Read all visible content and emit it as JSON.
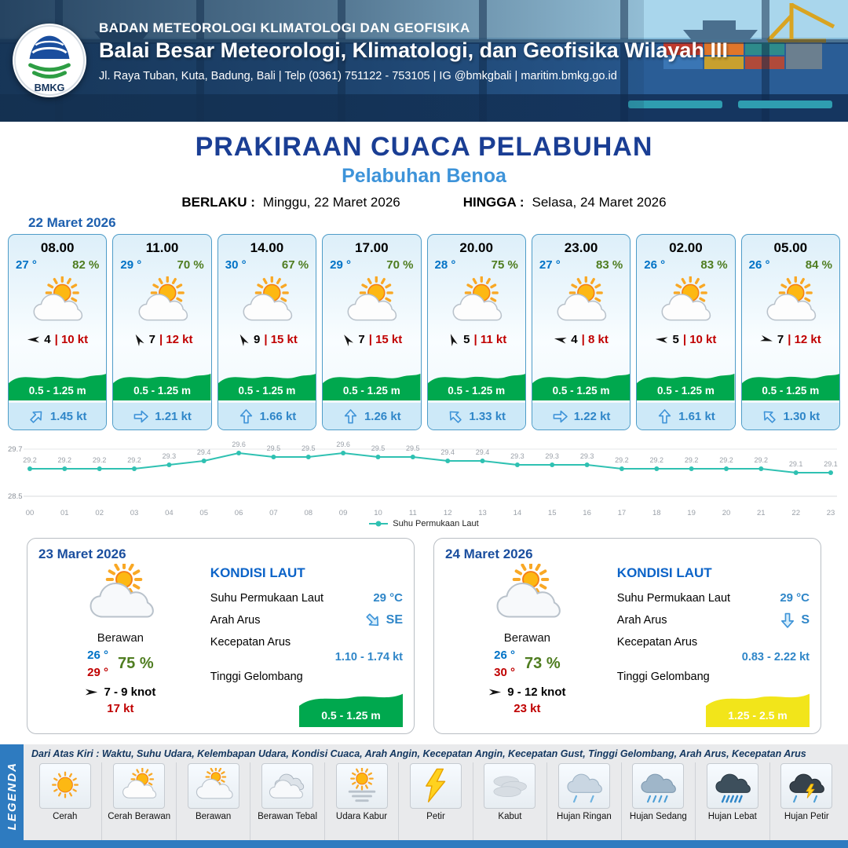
{
  "colors": {
    "header_navy": "#1C4070",
    "title_blue": "#1A3E94",
    "port_blue": "#3D93D9",
    "temp_blue": "#0072C6",
    "humidity_green": "#4F7D20",
    "gust_red": "#C00000",
    "wave_green": "#00A84E",
    "wave_yellow": "#F2E51A",
    "current_blue": "#2F86C8",
    "chart_teal": "#2FC1B2",
    "legend_blue": "#2E7BC0"
  },
  "header": {
    "logo_text": "BMKG",
    "line1": "BADAN METEOROLOGI KLIMATOLOGI DAN GEOFISIKA",
    "line2": "Balai Besar Meteorologi, Klimatologi, dan Geofisika Wilayah III",
    "line3": "Jl. Raya Tuban, Kuta, Badung, Bali | Telp (0361) 751122 - 753105 | IG @bmkgbali | maritim.bmkg.go.id"
  },
  "title": {
    "main": "PRAKIRAAN CUACA PELABUHAN",
    "sub": "Pelabuhan Benoa",
    "berlaku_label": "BERLAKU :",
    "berlaku_value": "Minggu, 22 Maret 2026",
    "hingga_label": "HINGGA :",
    "hingga_value": "Selasa, 24 Maret 2026"
  },
  "icons": {
    "wind": "wind-arrow",
    "current": "current-arrow"
  },
  "hourly": {
    "date": "22 Maret 2026",
    "cards": [
      {
        "time": "08.00",
        "temp": "27 °",
        "rh": "82 %",
        "icon": "cerah-berawan",
        "wind_dir_deg": 180,
        "wind_speed": "4",
        "gust": "| 10 kt",
        "wave": "0.5 - 1.25 m",
        "current_dir_deg": -45,
        "current_speed": "1.45 kt"
      },
      {
        "time": "11.00",
        "temp": "29 °",
        "rh": "70 %",
        "icon": "cerah-berawan",
        "wind_dir_deg": 240,
        "wind_speed": "7",
        "gust": "| 12 kt",
        "wave": "0.5 - 1.25 m",
        "current_dir_deg": 0,
        "current_speed": "1.21 kt"
      },
      {
        "time": "14.00",
        "temp": "30 °",
        "rh": "67 %",
        "icon": "cerah-berawan",
        "wind_dir_deg": 240,
        "wind_speed": "9",
        "gust": "| 15 kt",
        "wave": "0.5 - 1.25 m",
        "current_dir_deg": -90,
        "current_speed": "1.66 kt"
      },
      {
        "time": "17.00",
        "temp": "29 °",
        "rh": "70 %",
        "icon": "cerah-berawan",
        "wind_dir_deg": 235,
        "wind_speed": "7",
        "gust": "| 15 kt",
        "wave": "0.5 - 1.25 m",
        "current_dir_deg": -90,
        "current_speed": "1.26 kt"
      },
      {
        "time": "20.00",
        "temp": "28 °",
        "rh": "75 %",
        "icon": "cerah-berawan",
        "wind_dir_deg": 250,
        "wind_speed": "5",
        "gust": "| 11 kt",
        "wave": "0.5 - 1.25 m",
        "current_dir_deg": -135,
        "current_speed": "1.33 kt"
      },
      {
        "time": "23.00",
        "temp": "27 °",
        "rh": "83 %",
        "icon": "cerah-berawan",
        "wind_dir_deg": 190,
        "wind_speed": "4",
        "gust": "| 8 kt",
        "wave": "0.5 - 1.25 m",
        "current_dir_deg": 0,
        "current_speed": "1.22 kt"
      },
      {
        "time": "02.00",
        "temp": "26 °",
        "rh": "83 %",
        "icon": "cerah-berawan",
        "wind_dir_deg": 185,
        "wind_speed": "5",
        "gust": "| 10 kt",
        "wave": "0.5 - 1.25 m",
        "current_dir_deg": -90,
        "current_speed": "1.61 kt"
      },
      {
        "time": "05.00",
        "temp": "26 °",
        "rh": "84 %",
        "icon": "cerah-berawan",
        "wind_dir_deg": 15,
        "wind_speed": "7",
        "gust": "| 12 kt",
        "wave": "0.5 - 1.25 m",
        "current_dir_deg": -135,
        "current_speed": "1.30 kt"
      }
    ]
  },
  "chart_data": {
    "type": "line",
    "series_name": "Suhu Permukaan Laut",
    "x": [
      "00",
      "01",
      "02",
      "03",
      "04",
      "05",
      "06",
      "07",
      "08",
      "09",
      "10",
      "11",
      "12",
      "13",
      "14",
      "15",
      "16",
      "17",
      "18",
      "19",
      "20",
      "21",
      "22",
      "23"
    ],
    "values": [
      29.2,
      29.2,
      29.2,
      29.2,
      29.3,
      29.4,
      29.6,
      29.5,
      29.5,
      29.6,
      29.5,
      29.5,
      29.4,
      29.4,
      29.3,
      29.3,
      29.3,
      29.2,
      29.2,
      29.2,
      29.2,
      29.2,
      29.1,
      29.1
    ],
    "ylim": [
      28.5,
      29.7
    ],
    "line_color": "#2FC1B2",
    "grid": true,
    "legend_position": "bottom"
  },
  "daily": {
    "cards": [
      {
        "date": "23 Maret 2026",
        "icon": "berawan",
        "condition": "Berawan",
        "temp_min": "26 °",
        "temp_max": "29 °",
        "rh": "75 %",
        "wind_dir_deg": 0,
        "wind_range": "7 - 9 knot",
        "gust": "17 kt",
        "sea": {
          "title": "KONDISI LAUT",
          "sst_label": "Suhu Permukaan Laut",
          "sst": "29 °C",
          "dir_label": "Arah Arus",
          "dir": "SE",
          "dir_deg": 45,
          "speed_label": "Kecepatan Arus",
          "speed": "1.10 - 1.74 kt",
          "wave_label": "Tinggi Gelombang",
          "wave": "0.5 - 1.25 m",
          "wave_fill": "#00A84E"
        }
      },
      {
        "date": "24 Maret 2026",
        "icon": "berawan",
        "condition": "Berawan",
        "temp_min": "26 °",
        "temp_max": "30 °",
        "rh": "73 %",
        "wind_dir_deg": 0,
        "wind_range": "9 - 12 knot",
        "gust": "23 kt",
        "sea": {
          "title": "KONDISI LAUT",
          "sst_label": "Suhu Permukaan Laut",
          "sst": "29 °C",
          "dir_label": "Arah Arus",
          "dir": "S",
          "dir_deg": 90,
          "speed_label": "Kecepatan Arus",
          "speed": "0.83 - 2.22 kt",
          "wave_label": "Tinggi Gelombang",
          "wave": "1.25 - 2.5 m",
          "wave_fill": "#F2E51A"
        }
      }
    ]
  },
  "legend": {
    "label": "LEGENDA",
    "description": "Dari Atas Kiri : Waktu, Suhu Udara, Kelembapan Udara, Kondisi Cuaca, Arah Angin, Kecepatan Angin, Kecepatan Gust, Tinggi Gelombang, Arah Arus, Kecepatan Arus",
    "items": [
      {
        "icon": "cerah",
        "label": "Cerah"
      },
      {
        "icon": "cerah-berawan",
        "label": "Cerah Berawan"
      },
      {
        "icon": "berawan",
        "label": "Berawan"
      },
      {
        "icon": "berawan-tebal",
        "label": "Berawan Tebal"
      },
      {
        "icon": "udara-kabur",
        "label": "Udara Kabur"
      },
      {
        "icon": "petir",
        "label": "Petir"
      },
      {
        "icon": "kabut",
        "label": "Kabut"
      },
      {
        "icon": "hujan-ringan",
        "label": "Hujan Ringan"
      },
      {
        "icon": "hujan-sedang",
        "label": "Hujan Sedang"
      },
      {
        "icon": "hujan-lebat",
        "label": "Hujan Lebat"
      },
      {
        "icon": "hujan-petir",
        "label": "Hujan Petir"
      }
    ]
  }
}
